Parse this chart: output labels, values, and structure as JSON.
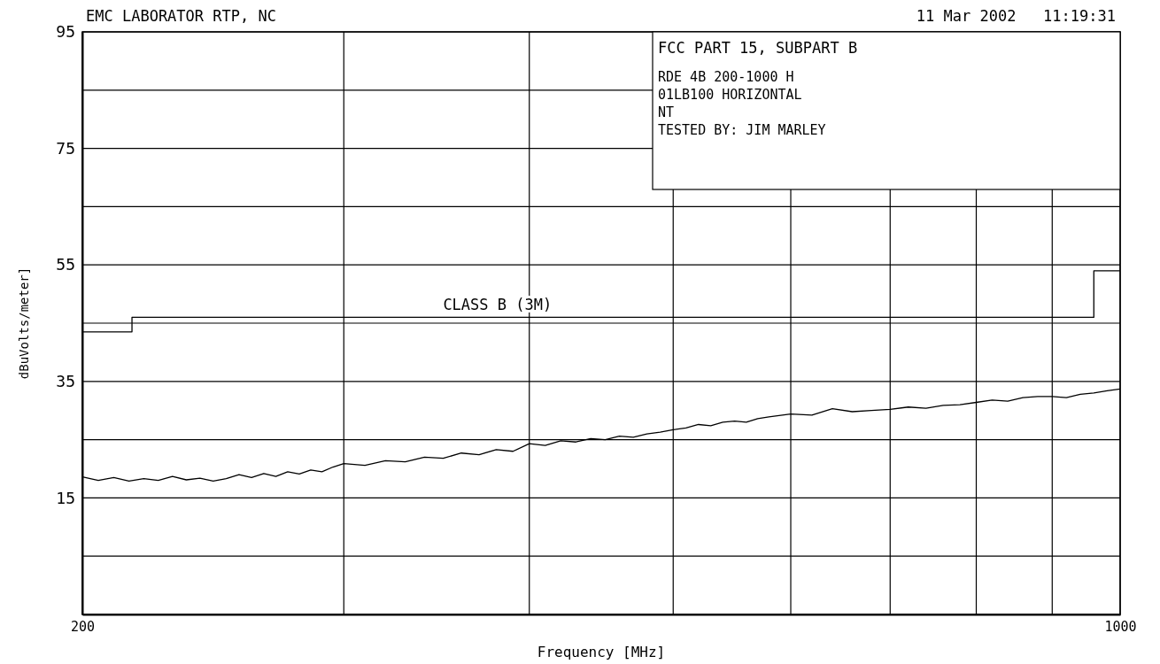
{
  "chart_data": {
    "type": "line",
    "title": "EMC LABORATOR RTP, NC",
    "xlabel": "Frequency [MHz]",
    "ylabel": "dBuVolts/meter]",
    "annotations": [
      "11 Mar 2002   11:19:31",
      "FCC PART 15, SUBPART B",
      "RDE 4B 200-1000 H",
      "01LB100 HORIZONTAL",
      "NT",
      "TESTED BY: JIM MARLEY"
    ],
    "log": "x",
    "grid": true,
    "xlim": [
      200,
      1000
    ],
    "xticks": [
      200,
      {
        "value": 300,
        "label": null
      },
      {
        "value": 400,
        "label": null
      },
      {
        "value": 500,
        "label": null
      },
      {
        "value": 600,
        "label": null
      },
      {
        "value": 700,
        "label": null
      },
      {
        "value": 800,
        "label": null
      },
      {
        "value": 900,
        "label": null
      },
      1000
    ],
    "ylim": [
      -5,
      95
    ],
    "yticks": [
      {
        "value": 5,
        "label": null
      },
      15,
      {
        "value": 25,
        "label": null
      },
      35,
      {
        "value": 45,
        "label": null
      },
      55,
      {
        "value": 65,
        "label": null
      },
      75,
      {
        "value": 85,
        "label": null
      },
      95
    ],
    "series": [
      {
        "name": "CLASS B (3M)",
        "type": "step",
        "color": "#000000",
        "x": [
          200,
          216,
          960,
          1000
        ],
        "values": [
          43.5,
          46,
          54,
          54
        ]
      },
      {
        "color": "#000000",
        "x": [
          200,
          205,
          210,
          215,
          220,
          225,
          230,
          235,
          240,
          245,
          250,
          255,
          260,
          265,
          270,
          275,
          280,
          285,
          290,
          295,
          300,
          310,
          320,
          330,
          340,
          350,
          360,
          370,
          380,
          390,
          400,
          410,
          420,
          430,
          440,
          450,
          460,
          470,
          480,
          490,
          500,
          510,
          520,
          530,
          540,
          550,
          560,
          570,
          580,
          600,
          620,
          640,
          660,
          680,
          700,
          720,
          740,
          760,
          780,
          800,
          820,
          840,
          860,
          880,
          900,
          920,
          940,
          960,
          980,
          1000
        ],
        "values": [
          18.6,
          18.0,
          18.5,
          17.9,
          18.3,
          18.0,
          18.7,
          18.1,
          18.4,
          17.9,
          18.3,
          19.0,
          18.5,
          19.2,
          18.7,
          19.5,
          19.1,
          19.8,
          19.5,
          20.3,
          20.9,
          20.6,
          21.4,
          21.2,
          22.0,
          21.8,
          22.7,
          22.4,
          23.3,
          23.0,
          24.3,
          24.0,
          24.8,
          24.6,
          25.2,
          25.0,
          25.6,
          25.4,
          26.0,
          26.3,
          26.7,
          27.0,
          27.6,
          27.4,
          28.0,
          28.2,
          28.0,
          28.6,
          28.9,
          29.4,
          29.2,
          30.3,
          29.8,
          30.0,
          30.2,
          30.6,
          30.4,
          30.9,
          31.0,
          31.4,
          31.8,
          31.6,
          32.2,
          32.4,
          32.4,
          32.2,
          32.8,
          33.0,
          33.4,
          33.7
        ]
      }
    ]
  }
}
